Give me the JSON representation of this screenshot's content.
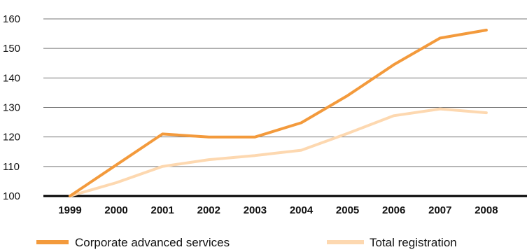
{
  "chart_data": {
    "type": "line",
    "title": "",
    "xlabel": "",
    "ylabel": "",
    "x": [
      "1999",
      "2000",
      "2001",
      "2002",
      "2003",
      "2004",
      "2005",
      "2006",
      "2007",
      "2008"
    ],
    "yticks": [
      "100",
      "110",
      "120",
      "130",
      "140",
      "150",
      "160"
    ],
    "ylim": [
      100,
      160
    ],
    "grid": true,
    "legend_position": "bottom",
    "series": [
      {
        "name": "Corporate advanced services",
        "color": "#f39a3c",
        "values": [
          100,
          110.5,
          121,
          120,
          120,
          124.8,
          134,
          144.5,
          153.5,
          156.2
        ]
      },
      {
        "name": "Total registration",
        "color": "#fdd8b0",
        "values": [
          100,
          104.5,
          110,
          112.3,
          113.7,
          115.5,
          121.2,
          127.2,
          129.5,
          128.2
        ]
      }
    ]
  }
}
